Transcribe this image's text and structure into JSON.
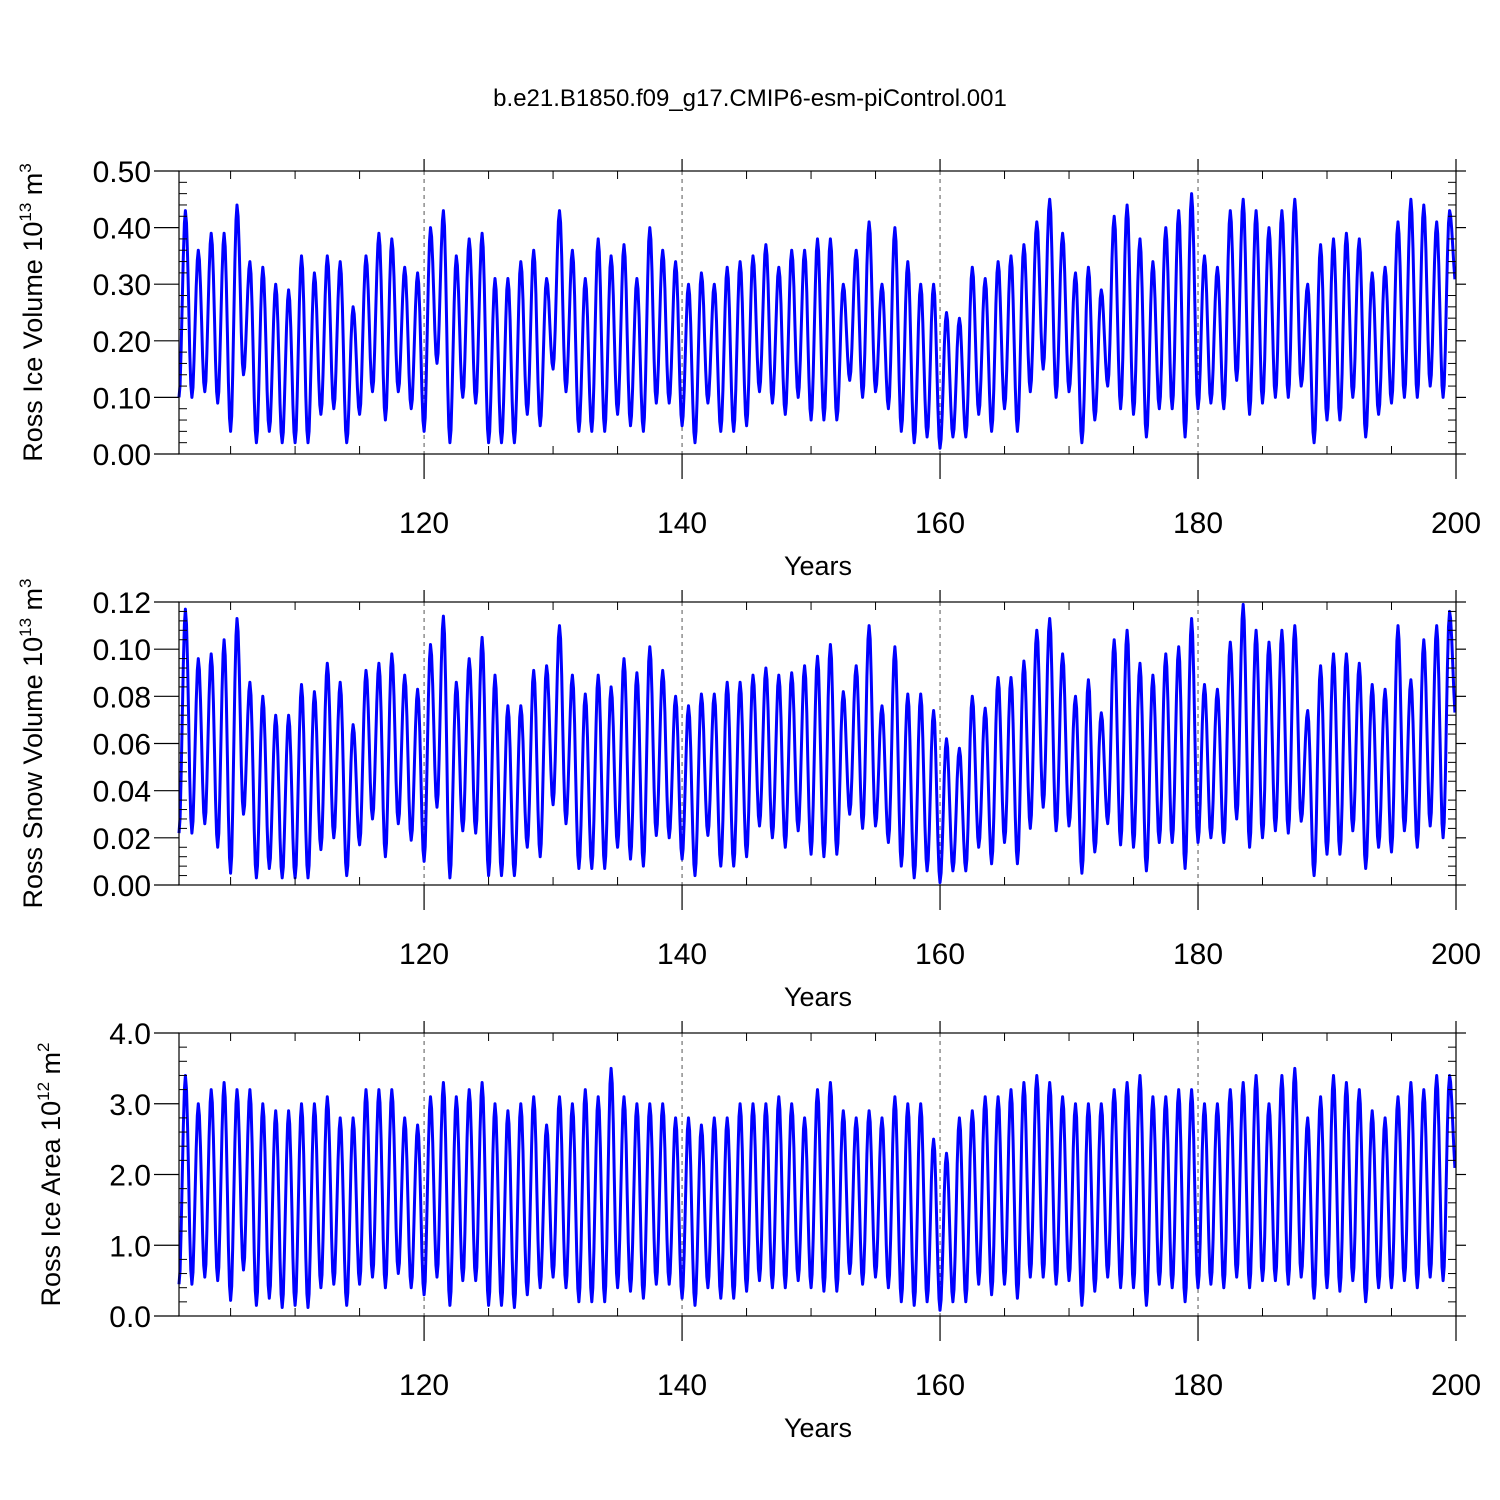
{
  "figure": {
    "title": "b.e21.B1850.f09_g17.CMIP6-esm-piControl.001"
  },
  "chart_data": [
    {
      "type": "line",
      "id": "ice-volume",
      "ylabel": "Ross Ice Volume 10¹³ m³",
      "ylabel_parts": {
        "main": "Ross Ice Volume 10",
        "exp": "13",
        "unit": " m",
        "unit_exp": "3"
      },
      "xlabel": "Years",
      "xlim": [
        101,
        200
      ],
      "ylim": [
        0.0,
        0.5
      ],
      "xticks": [
        120,
        140,
        160,
        180,
        200
      ],
      "xtick_labels": [
        "120",
        "140",
        "160",
        "180",
        "200"
      ],
      "yticks": [
        0.0,
        0.1,
        0.2,
        0.3,
        0.4,
        0.5
      ],
      "ytick_labels": [
        "0.00",
        "0.10",
        "0.20",
        "0.30",
        "0.40",
        "0.50"
      ],
      "grid": "dashed vertical lines at major x ticks",
      "series_color": "#0000ff",
      "x_start": 101,
      "x_end": 200,
      "peaks": [
        0.43,
        0.36,
        0.39,
        0.39,
        0.44,
        0.34,
        0.33,
        0.3,
        0.29,
        0.35,
        0.32,
        0.35,
        0.34,
        0.26,
        0.35,
        0.39,
        0.38,
        0.33,
        0.32,
        0.4,
        0.43,
        0.35,
        0.38,
        0.39,
        0.31,
        0.31,
        0.34,
        0.36,
        0.31,
        0.43,
        0.36,
        0.31,
        0.38,
        0.35,
        0.37,
        0.31,
        0.4,
        0.36,
        0.34,
        0.3,
        0.32,
        0.3,
        0.33,
        0.34,
        0.35,
        0.37,
        0.33,
        0.36,
        0.36,
        0.38,
        0.38,
        0.3,
        0.36,
        0.41,
        0.3,
        0.4,
        0.34,
        0.3,
        0.3,
        0.25,
        0.24,
        0.33,
        0.31,
        0.34,
        0.35,
        0.37,
        0.41,
        0.45,
        0.39,
        0.32,
        0.33,
        0.29,
        0.42,
        0.44,
        0.38,
        0.34,
        0.4,
        0.43,
        0.46,
        0.35,
        0.33,
        0.43,
        0.45,
        0.43,
        0.4,
        0.43,
        0.45,
        0.3,
        0.37,
        0.38,
        0.39,
        0.38,
        0.32,
        0.33,
        0.41,
        0.45,
        0.44,
        0.41,
        0.43
      ],
      "troughs": [
        0.1,
        0.11,
        0.09,
        0.04,
        0.14,
        0.02,
        0.04,
        0.02,
        0.02,
        0.02,
        0.07,
        0.08,
        0.02,
        0.07,
        0.11,
        0.06,
        0.11,
        0.08,
        0.04,
        0.16,
        0.02,
        0.1,
        0.09,
        0.02,
        0.02,
        0.02,
        0.07,
        0.05,
        0.15,
        0.11,
        0.04,
        0.04,
        0.04,
        0.07,
        0.05,
        0.04,
        0.09,
        0.09,
        0.05,
        0.02,
        0.09,
        0.04,
        0.04,
        0.05,
        0.11,
        0.09,
        0.07,
        0.1,
        0.06,
        0.06,
        0.06,
        0.13,
        0.1,
        0.11,
        0.08,
        0.04,
        0.02,
        0.03,
        0.01,
        0.03,
        0.03,
        0.07,
        0.04,
        0.08,
        0.04,
        0.11,
        0.15,
        0.1,
        0.11,
        0.02,
        0.06,
        0.12,
        0.08,
        0.07,
        0.03,
        0.08,
        0.08,
        0.03,
        0.08,
        0.09,
        0.08,
        0.13,
        0.07,
        0.09,
        0.1,
        0.1,
        0.12,
        0.02,
        0.06,
        0.06,
        0.1,
        0.03,
        0.07,
        0.09,
        0.1,
        0.1,
        0.12,
        0.1,
        0.3
      ]
    },
    {
      "type": "line",
      "id": "snow-volume",
      "ylabel": "Ross Snow Volume 10¹³ m³",
      "ylabel_parts": {
        "main": "Ross Snow Volume 10",
        "exp": "13",
        "unit": " m",
        "unit_exp": "3"
      },
      "xlabel": "Years",
      "xlim": [
        101,
        200
      ],
      "ylim": [
        0.0,
        0.12
      ],
      "xticks": [
        120,
        140,
        160,
        180,
        200
      ],
      "xtick_labels": [
        "120",
        "140",
        "160",
        "180",
        "200"
      ],
      "yticks": [
        0.0,
        0.02,
        0.04,
        0.06,
        0.08,
        0.1,
        0.12
      ],
      "ytick_labels": [
        "0.00",
        "0.02",
        "0.04",
        "0.06",
        "0.08",
        "0.10",
        "0.12"
      ],
      "grid": "dashed vertical lines at major x ticks",
      "series_color": "#0000ff",
      "x_start": 101,
      "x_end": 200,
      "peaks": [
        0.117,
        0.096,
        0.098,
        0.104,
        0.113,
        0.086,
        0.08,
        0.072,
        0.072,
        0.085,
        0.082,
        0.094,
        0.086,
        0.068,
        0.091,
        0.094,
        0.098,
        0.089,
        0.083,
        0.102,
        0.114,
        0.086,
        0.096,
        0.105,
        0.089,
        0.076,
        0.076,
        0.091,
        0.093,
        0.11,
        0.089,
        0.081,
        0.089,
        0.084,
        0.096,
        0.09,
        0.101,
        0.091,
        0.08,
        0.076,
        0.081,
        0.081,
        0.086,
        0.086,
        0.089,
        0.092,
        0.089,
        0.09,
        0.093,
        0.097,
        0.102,
        0.082,
        0.093,
        0.11,
        0.076,
        0.101,
        0.081,
        0.081,
        0.074,
        0.062,
        0.058,
        0.08,
        0.075,
        0.088,
        0.088,
        0.095,
        0.108,
        0.113,
        0.098,
        0.08,
        0.087,
        0.073,
        0.104,
        0.108,
        0.094,
        0.089,
        0.098,
        0.101,
        0.113,
        0.085,
        0.083,
        0.103,
        0.119,
        0.108,
        0.103,
        0.108,
        0.11,
        0.074,
        0.093,
        0.098,
        0.098,
        0.094,
        0.085,
        0.083,
        0.11,
        0.087,
        0.104,
        0.11,
        0.116
      ],
      "troughs": [
        0.022,
        0.026,
        0.016,
        0.005,
        0.03,
        0.003,
        0.007,
        0.003,
        0.003,
        0.003,
        0.015,
        0.02,
        0.004,
        0.017,
        0.028,
        0.012,
        0.026,
        0.019,
        0.01,
        0.033,
        0.003,
        0.023,
        0.022,
        0.004,
        0.004,
        0.004,
        0.016,
        0.012,
        0.034,
        0.026,
        0.007,
        0.007,
        0.007,
        0.016,
        0.011,
        0.008,
        0.021,
        0.02,
        0.011,
        0.004,
        0.021,
        0.008,
        0.008,
        0.012,
        0.025,
        0.02,
        0.016,
        0.023,
        0.013,
        0.012,
        0.013,
        0.03,
        0.024,
        0.025,
        0.018,
        0.008,
        0.003,
        0.006,
        0.001,
        0.006,
        0.006,
        0.016,
        0.009,
        0.018,
        0.009,
        0.024,
        0.033,
        0.023,
        0.025,
        0.005,
        0.014,
        0.026,
        0.017,
        0.016,
        0.006,
        0.018,
        0.018,
        0.007,
        0.018,
        0.02,
        0.018,
        0.028,
        0.016,
        0.02,
        0.023,
        0.022,
        0.027,
        0.004,
        0.013,
        0.013,
        0.023,
        0.007,
        0.016,
        0.014,
        0.023,
        0.016,
        0.025,
        0.02,
        0.07
      ]
    },
    {
      "type": "line",
      "id": "ice-area",
      "ylabel": "Ross Ice Area 10¹² m²",
      "ylabel_parts": {
        "main": "Ross Ice Area 10",
        "exp": "12",
        "unit": " m",
        "unit_exp": "2"
      },
      "xlabel": "Years",
      "xlim": [
        101,
        200
      ],
      "ylim": [
        0.0,
        4.0
      ],
      "xticks": [
        120,
        140,
        160,
        180,
        200
      ],
      "xtick_labels": [
        "120",
        "140",
        "160",
        "180",
        "200"
      ],
      "yticks": [
        0.0,
        1.0,
        2.0,
        3.0,
        4.0
      ],
      "ytick_labels": [
        "0.0",
        "1.0",
        "2.0",
        "3.0",
        "4.0"
      ],
      "grid": "dashed vertical lines at major x ticks",
      "series_color": "#0000ff",
      "x_start": 101,
      "x_end": 200,
      "peaks": [
        3.4,
        3.0,
        3.2,
        3.3,
        3.2,
        3.2,
        3.0,
        2.9,
        2.9,
        3.0,
        3.0,
        3.1,
        2.8,
        2.8,
        3.2,
        3.2,
        3.2,
        2.8,
        2.7,
        3.1,
        3.3,
        3.1,
        3.2,
        3.3,
        3.0,
        2.9,
        3.0,
        3.1,
        2.7,
        3.1,
        3.0,
        3.2,
        3.1,
        3.5,
        3.1,
        3.0,
        3.0,
        3.0,
        2.8,
        2.8,
        2.7,
        2.8,
        2.8,
        3.0,
        3.0,
        3.0,
        3.1,
        3.0,
        2.8,
        3.2,
        3.3,
        2.9,
        2.8,
        2.9,
        2.8,
        3.1,
        3.0,
        3.0,
        2.5,
        2.3,
        2.8,
        2.9,
        3.1,
        3.1,
        3.2,
        3.3,
        3.4,
        3.3,
        3.1,
        3.0,
        3.0,
        3.0,
        3.2,
        3.3,
        3.4,
        3.1,
        3.1,
        3.2,
        3.2,
        3.0,
        3.0,
        3.2,
        3.3,
        3.4,
        3.0,
        3.4,
        3.5,
        2.8,
        3.1,
        3.4,
        3.3,
        3.2,
        2.9,
        2.8,
        3.1,
        3.3,
        3.2,
        3.4,
        3.4
      ],
      "troughs": [
        0.45,
        0.55,
        0.5,
        0.22,
        0.65,
        0.15,
        0.25,
        0.12,
        0.15,
        0.12,
        0.4,
        0.45,
        0.15,
        0.45,
        0.55,
        0.4,
        0.6,
        0.4,
        0.3,
        0.55,
        0.15,
        0.5,
        0.5,
        0.15,
        0.15,
        0.12,
        0.3,
        0.4,
        0.55,
        0.4,
        0.2,
        0.2,
        0.2,
        0.4,
        0.35,
        0.25,
        0.45,
        0.45,
        0.25,
        0.15,
        0.4,
        0.25,
        0.25,
        0.35,
        0.5,
        0.4,
        0.4,
        0.5,
        0.4,
        0.35,
        0.35,
        0.6,
        0.45,
        0.55,
        0.4,
        0.2,
        0.15,
        0.2,
        0.08,
        0.2,
        0.2,
        0.45,
        0.3,
        0.45,
        0.25,
        0.55,
        0.55,
        0.45,
        0.5,
        0.15,
        0.35,
        0.55,
        0.4,
        0.4,
        0.15,
        0.45,
        0.4,
        0.2,
        0.4,
        0.45,
        0.4,
        0.55,
        0.4,
        0.5,
        0.5,
        0.45,
        0.55,
        0.25,
        0.4,
        0.35,
        0.5,
        0.2,
        0.4,
        0.4,
        0.5,
        0.4,
        0.55,
        0.5,
        2.0
      ]
    }
  ]
}
